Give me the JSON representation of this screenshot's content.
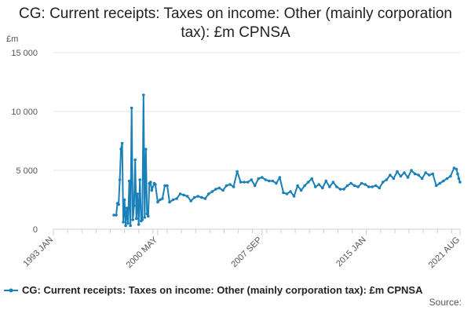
{
  "chart_data": {
    "type": "line",
    "title": "CG: Current receipts: Taxes on income: Other (mainly corporation tax): £m CPNSA",
    "ylabel": "£m",
    "xlabel": "",
    "ylim": [
      0,
      15000
    ],
    "y_ticks": [
      {
        "value": 0,
        "label": "0"
      },
      {
        "value": 5000,
        "label": "5 000"
      },
      {
        "value": 10000,
        "label": "10 000"
      },
      {
        "value": 15000,
        "label": "15 000"
      }
    ],
    "x_ticks": [
      {
        "value": "1993-01",
        "label": "1993 JAN"
      },
      {
        "value": "2000-05",
        "label": "2000 MAY"
      },
      {
        "value": "2007-09",
        "label": "2007 SEP"
      },
      {
        "value": "2015-01",
        "label": "2015 JAN"
      },
      {
        "value": "2021-08",
        "label": "2021 AUG"
      }
    ],
    "grid": true,
    "legend_position": "bottom",
    "series": [
      {
        "name": "CG: Current receipts: Taxes on income: Other (mainly corporation tax): £m CPNSA",
        "color": "#1a80ba",
        "points": [
          [
            "1997-04",
            1200
          ],
          [
            "1997-06",
            1200
          ],
          [
            "1997-07",
            2200
          ],
          [
            "1997-08",
            2100
          ],
          [
            "1997-09",
            4200
          ],
          [
            "1997-10",
            6800
          ],
          [
            "1997-11",
            7300
          ],
          [
            "1997-12",
            600
          ],
          [
            "1998-01",
            2500
          ],
          [
            "1998-02",
            300
          ],
          [
            "1998-03",
            1800
          ],
          [
            "1998-04",
            500
          ],
          [
            "1998-05",
            4100
          ],
          [
            "1998-06",
            300
          ],
          [
            "1998-07",
            10300
          ],
          [
            "1998-08",
            800
          ],
          [
            "1998-09",
            2000
          ],
          [
            "1998-10",
            5900
          ],
          [
            "1998-11",
            900
          ],
          [
            "1998-12",
            3000
          ],
          [
            "1999-01",
            400
          ],
          [
            "1999-02",
            4200
          ],
          [
            "1999-03",
            700
          ],
          [
            "1999-04",
            800
          ],
          [
            "1999-05",
            11400
          ],
          [
            "1999-06",
            1000
          ],
          [
            "1999-07",
            6800
          ],
          [
            "1999-08",
            1300
          ],
          [
            "1999-09",
            1100
          ],
          [
            "1999-10",
            3900
          ],
          [
            "1999-11",
            4000
          ],
          [
            "1999-12",
            3300
          ],
          [
            "2000-02",
            3900
          ],
          [
            "2000-03",
            3800
          ],
          [
            "2000-05",
            2300
          ],
          [
            "2000-07",
            2500
          ],
          [
            "2000-09",
            2600
          ],
          [
            "2000-11",
            3700
          ],
          [
            "2001-01",
            3700
          ],
          [
            "2001-03",
            2300
          ],
          [
            "2001-06",
            2500
          ],
          [
            "2001-09",
            2600
          ],
          [
            "2001-12",
            3000
          ],
          [
            "2002-03",
            2900
          ],
          [
            "2002-06",
            2800
          ],
          [
            "2002-09",
            2400
          ],
          [
            "2002-12",
            2700
          ],
          [
            "2003-03",
            2800
          ],
          [
            "2003-06",
            2700
          ],
          [
            "2003-09",
            2600
          ],
          [
            "2003-12",
            3000
          ],
          [
            "2004-03",
            3200
          ],
          [
            "2004-06",
            3400
          ],
          [
            "2004-09",
            3500
          ],
          [
            "2004-12",
            3300
          ],
          [
            "2005-03",
            3700
          ],
          [
            "2005-06",
            3800
          ],
          [
            "2005-09",
            3600
          ],
          [
            "2005-12",
            4900
          ],
          [
            "2006-03",
            4000
          ],
          [
            "2006-06",
            4000
          ],
          [
            "2006-09",
            4000
          ],
          [
            "2006-12",
            4200
          ],
          [
            "2007-03",
            3700
          ],
          [
            "2007-06",
            4300
          ],
          [
            "2007-09",
            4400
          ],
          [
            "2007-12",
            4200
          ],
          [
            "2008-03",
            4100
          ],
          [
            "2008-06",
            4100
          ],
          [
            "2008-09",
            3900
          ],
          [
            "2008-12",
            4400
          ],
          [
            "2009-03",
            3100
          ],
          [
            "2009-06",
            3000
          ],
          [
            "2009-09",
            3200
          ],
          [
            "2009-12",
            2800
          ],
          [
            "2010-03",
            3700
          ],
          [
            "2010-06",
            3300
          ],
          [
            "2010-09",
            3700
          ],
          [
            "2010-12",
            4000
          ],
          [
            "2011-03",
            4300
          ],
          [
            "2011-06",
            3600
          ],
          [
            "2011-09",
            3800
          ],
          [
            "2011-12",
            3500
          ],
          [
            "2012-03",
            4100
          ],
          [
            "2012-06",
            3600
          ],
          [
            "2012-09",
            4000
          ],
          [
            "2012-12",
            3600
          ],
          [
            "2013-03",
            3400
          ],
          [
            "2013-06",
            3400
          ],
          [
            "2013-09",
            3700
          ],
          [
            "2013-12",
            3900
          ],
          [
            "2014-03",
            3700
          ],
          [
            "2014-06",
            3600
          ],
          [
            "2014-09",
            3900
          ],
          [
            "2014-12",
            3800
          ],
          [
            "2015-03",
            3600
          ],
          [
            "2015-06",
            3600
          ],
          [
            "2015-09",
            3700
          ],
          [
            "2015-12",
            3500
          ],
          [
            "2016-03",
            4000
          ],
          [
            "2016-06",
            4200
          ],
          [
            "2016-09",
            4600
          ],
          [
            "2016-12",
            4300
          ],
          [
            "2017-03",
            4900
          ],
          [
            "2017-06",
            4500
          ],
          [
            "2017-09",
            4800
          ],
          [
            "2017-12",
            4400
          ],
          [
            "2018-03",
            5000
          ],
          [
            "2018-06",
            4700
          ],
          [
            "2018-09",
            4600
          ],
          [
            "2018-12",
            4300
          ],
          [
            "2019-03",
            4800
          ],
          [
            "2019-06",
            4600
          ],
          [
            "2019-09",
            4700
          ],
          [
            "2019-12",
            3700
          ],
          [
            "2020-03",
            3900
          ],
          [
            "2020-06",
            4100
          ],
          [
            "2020-09",
            4300
          ],
          [
            "2020-12",
            4500
          ],
          [
            "2021-03",
            5200
          ],
          [
            "2021-05",
            5100
          ],
          [
            "2021-06",
            4700
          ],
          [
            "2021-07",
            4300
          ],
          [
            "2021-08",
            4000
          ]
        ]
      }
    ],
    "source_label": "Source:"
  }
}
